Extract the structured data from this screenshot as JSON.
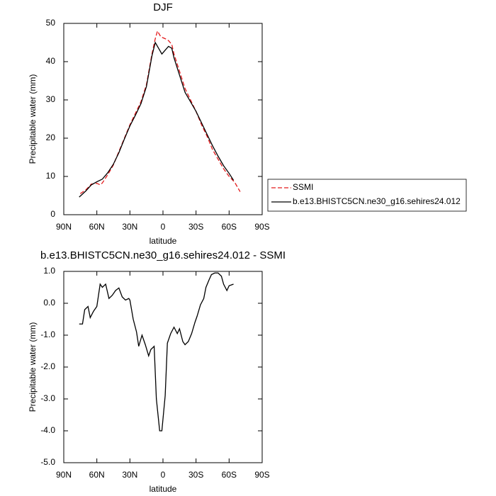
{
  "chart_data": [
    {
      "type": "line",
      "title": "DJF",
      "xlabel": "latitude",
      "ylabel": "Precipitable water (mm)",
      "xlim": [
        90,
        -90
      ],
      "ylim": [
        0,
        50
      ],
      "xticks": [
        {
          "value": 90,
          "label": "90N"
        },
        {
          "value": 60,
          "label": "60N"
        },
        {
          "value": 30,
          "label": "30N"
        },
        0,
        {
          "value": -30,
          "label": "30S"
        },
        {
          "value": -60,
          "label": "60S"
        },
        {
          "value": -90,
          "label": "90S"
        }
      ],
      "yticks": [
        0,
        10,
        20,
        30,
        40,
        50
      ],
      "legend": "right",
      "series": [
        {
          "name": "SSMI",
          "color": "#e41a1c",
          "line_style": "dashed",
          "x": [
            75,
            70,
            65,
            60,
            57,
            55,
            50,
            45,
            40,
            35,
            30,
            25,
            20,
            15,
            10,
            7,
            5,
            2,
            -2,
            -5,
            -8,
            -10,
            -15,
            -20,
            -25,
            -30,
            -35,
            -40,
            -45,
            -50,
            -55,
            -60,
            -65,
            -70
          ],
          "values": [
            5.5,
            6.5,
            8.0,
            8.2,
            7.8,
            8.3,
            10.5,
            13,
            16.5,
            20,
            23.5,
            26.5,
            29.5,
            34,
            42,
            46,
            48,
            46.5,
            46,
            45.5,
            44.5,
            42,
            37.5,
            33,
            30,
            27,
            23.5,
            20.5,
            17,
            14.5,
            12,
            10,
            8.5,
            6
          ]
        },
        {
          "name": "b.e13.BHISTC5CN.ne30_g16.sehires24.012",
          "color": "#000000",
          "line_style": "solid",
          "x": [
            76,
            70,
            65,
            60,
            55,
            50,
            45,
            40,
            35,
            30,
            25,
            20,
            15,
            10,
            7,
            4,
            1,
            -2,
            -5,
            -8,
            -10,
            -15,
            -20,
            -25,
            -30,
            -35,
            -40,
            -45,
            -50,
            -55,
            -60,
            -64
          ],
          "values": [
            4.6,
            6.2,
            7.8,
            8.6,
            9.3,
            11.0,
            13.2,
            16.2,
            19.8,
            23.2,
            26.0,
            29.0,
            33.5,
            41.5,
            45.0,
            43.5,
            42.0,
            43.0,
            44.0,
            43.5,
            41,
            36.5,
            32,
            29.5,
            27,
            24,
            21,
            18,
            15.3,
            12.8,
            10.8,
            9.0
          ]
        }
      ]
    },
    {
      "type": "line",
      "title": "b.e13.BHISTC5CN.ne30_g16.sehires24.012 - SSMI",
      "xlabel": "latitude",
      "ylabel": "Precipitable water (mm)",
      "xlim": [
        90,
        -90
      ],
      "ylim": [
        -5,
        1
      ],
      "xticks": [
        {
          "value": 90,
          "label": "90N"
        },
        {
          "value": 60,
          "label": "60N"
        },
        {
          "value": 30,
          "label": "30N"
        },
        0,
        {
          "value": -30,
          "label": "30S"
        },
        {
          "value": -60,
          "label": "60S"
        },
        {
          "value": -90,
          "label": "90S"
        }
      ],
      "yticks": [
        {
          "value": -5,
          "label": "-5.0"
        },
        {
          "value": -4,
          "label": "-4.0"
        },
        {
          "value": -3,
          "label": "-3.0"
        },
        {
          "value": -2,
          "label": "-2.0"
        },
        {
          "value": -1,
          "label": "-1.0"
        },
        {
          "value": 0,
          "label": "0.0"
        },
        {
          "value": 1,
          "label": "1.0"
        }
      ],
      "color": "#000000",
      "x": [
        76,
        73,
        71,
        68,
        66,
        63,
        60,
        57,
        55,
        52,
        49,
        46,
        43,
        40,
        37,
        34,
        31,
        30,
        27,
        24,
        22,
        19,
        16,
        13,
        11,
        8,
        6,
        3,
        1,
        -2,
        -4,
        -7,
        -10,
        -13,
        -15,
        -18,
        -20,
        -23,
        -26,
        -29,
        -31,
        -34,
        -37,
        -39,
        -42,
        -44,
        -47,
        -50,
        -53,
        -55,
        -58,
        -60,
        -64
      ],
      "values": [
        -0.65,
        -0.65,
        -0.2,
        -0.1,
        -0.45,
        -0.25,
        -0.1,
        0.6,
        0.5,
        0.6,
        0.15,
        0.25,
        0.4,
        0.48,
        0.2,
        0.1,
        0.15,
        0.1,
        -0.5,
        -0.9,
        -1.35,
        -1.0,
        -1.3,
        -1.65,
        -1.45,
        -1.35,
        -3.0,
        -4.0,
        -4.0,
        -2.9,
        -1.25,
        -0.95,
        -0.75,
        -0.95,
        -0.8,
        -1.2,
        -1.3,
        -1.2,
        -0.95,
        -0.6,
        -0.4,
        -0.05,
        0.15,
        0.5,
        0.75,
        0.9,
        0.95,
        0.95,
        0.85,
        0.6,
        0.4,
        0.55,
        0.6
      ]
    }
  ]
}
